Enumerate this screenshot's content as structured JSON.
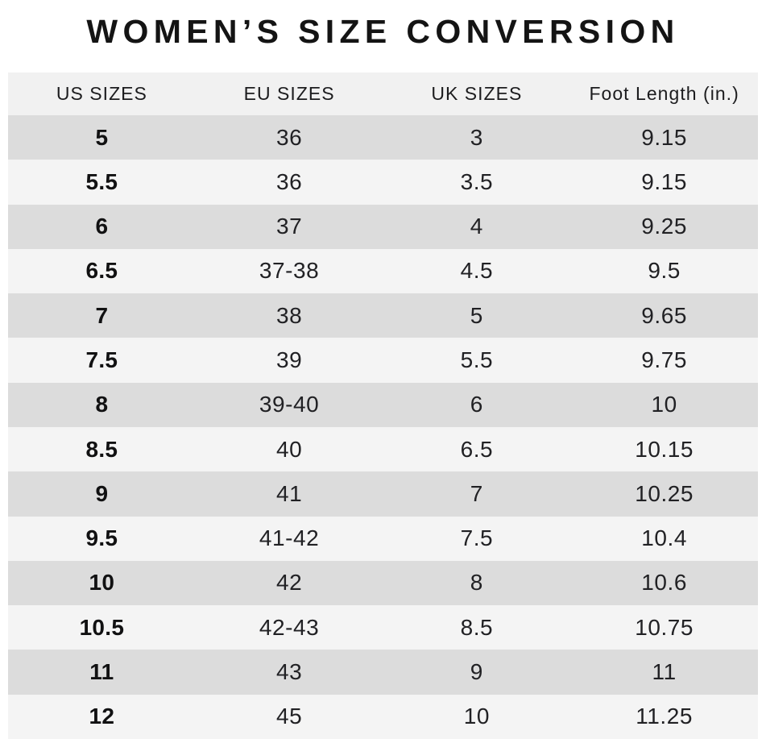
{
  "title": "WOMEN’S SIZE CONVERSION",
  "colors": {
    "page_bg": "#ffffff",
    "header_bg": "#f1f1f1",
    "row_dark": "#dcdcdc",
    "row_light": "#f4f4f4",
    "text": "#212124",
    "title_text": "#141414"
  },
  "chart_data": {
    "type": "table",
    "title": "WOMEN’S SIZE CONVERSION",
    "columns": [
      "US SIZES",
      "EU SIZES",
      "UK SIZES",
      "Foot Length (in.)"
    ],
    "rows": [
      [
        "5",
        "36",
        "3",
        "9.15"
      ],
      [
        "5.5",
        "36",
        "3.5",
        "9.15"
      ],
      [
        "6",
        "37",
        "4",
        "9.25"
      ],
      [
        "6.5",
        "37-38",
        "4.5",
        "9.5"
      ],
      [
        "7",
        "38",
        "5",
        "9.65"
      ],
      [
        "7.5",
        "39",
        "5.5",
        "9.75"
      ],
      [
        "8",
        "39-40",
        "6",
        "10"
      ],
      [
        "8.5",
        "40",
        "6.5",
        "10.15"
      ],
      [
        "9",
        "41",
        "7",
        "10.25"
      ],
      [
        "9.5",
        "41-42",
        "7.5",
        "10.4"
      ],
      [
        "10",
        "42",
        "8",
        "10.6"
      ],
      [
        "10.5",
        "42-43",
        "8.5",
        "10.75"
      ],
      [
        "11",
        "43",
        "9",
        "11"
      ],
      [
        "12",
        "45",
        "10",
        "11.25"
      ]
    ],
    "layout": {
      "row_striping": "odd rows dark gray, even rows light gray",
      "us_column_bold": true,
      "alignment": "center"
    }
  }
}
